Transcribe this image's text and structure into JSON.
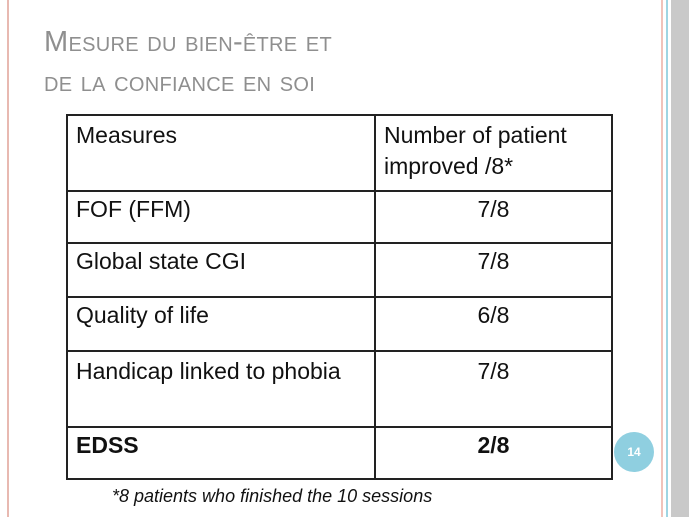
{
  "slide": {
    "title_line1": "Mesure du bien-être et",
    "title_line2": "de la confiance en soi",
    "page_number": "14",
    "footnote": "*8 patients who finished the 10 sessions",
    "accent_color": "#8fcfe0"
  },
  "table": {
    "headers": [
      "Measures",
      "Number of patient improved /8*"
    ],
    "rows": [
      {
        "measure": "FOF (FFM)",
        "value": "7/8"
      },
      {
        "measure": "Global state CGI",
        "value": "7/8"
      },
      {
        "measure": "Quality of life",
        "value": "6/8"
      },
      {
        "measure": "Handicap linked to phobia",
        "value": "7/8"
      },
      {
        "measure": "EDSS",
        "value": "2/8"
      }
    ]
  }
}
